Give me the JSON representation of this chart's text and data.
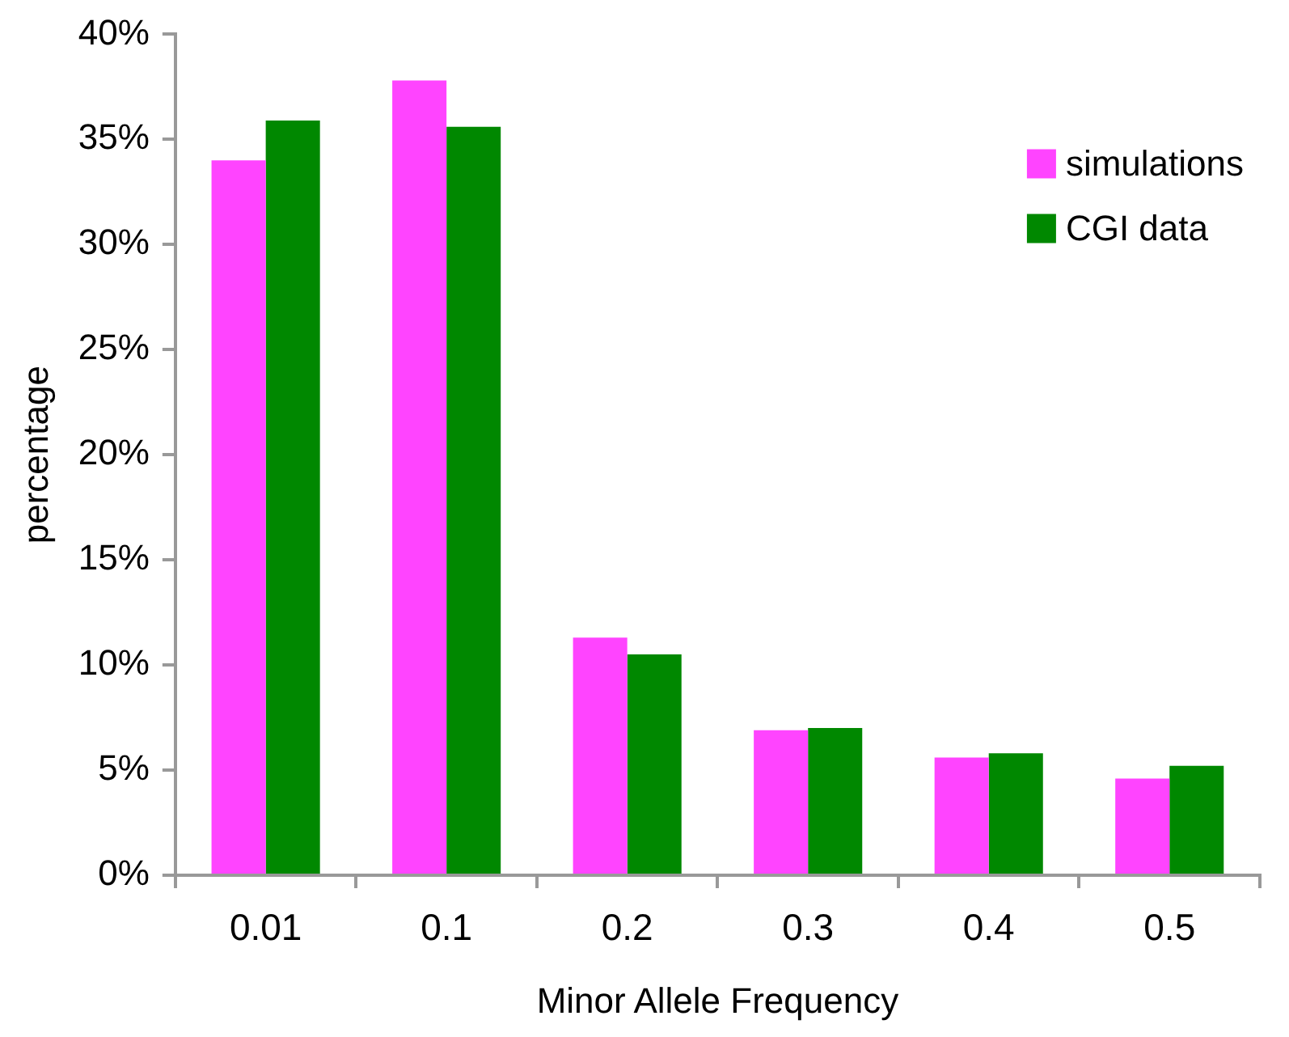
{
  "chart_data": {
    "type": "bar",
    "xlabel": "Minor Allele Frequency",
    "ylabel": "percentage",
    "categories": [
      "0.01",
      "0.1",
      "0.2",
      "0.3",
      "0.4",
      "0.5"
    ],
    "series": [
      {
        "name": "simulations",
        "color": "#ff44ff",
        "values": [
          34.0,
          37.8,
          11.3,
          6.9,
          5.6,
          4.6
        ]
      },
      {
        "name": "CGI data",
        "color": "#008800",
        "values": [
          35.9,
          35.6,
          10.5,
          7.0,
          5.8,
          5.2
        ]
      }
    ],
    "ylim": [
      0,
      40
    ],
    "yticks": [
      {
        "value": 0,
        "label": "0%"
      },
      {
        "value": 5,
        "label": "5%"
      },
      {
        "value": 10,
        "label": "10%"
      },
      {
        "value": 15,
        "label": "15%"
      },
      {
        "value": 20,
        "label": "20%"
      },
      {
        "value": 25,
        "label": "25%"
      },
      {
        "value": 30,
        "label": "30%"
      },
      {
        "value": 35,
        "label": "35%"
      },
      {
        "value": 40,
        "label": "40%"
      }
    ],
    "grid": false,
    "legend": "top right"
  }
}
